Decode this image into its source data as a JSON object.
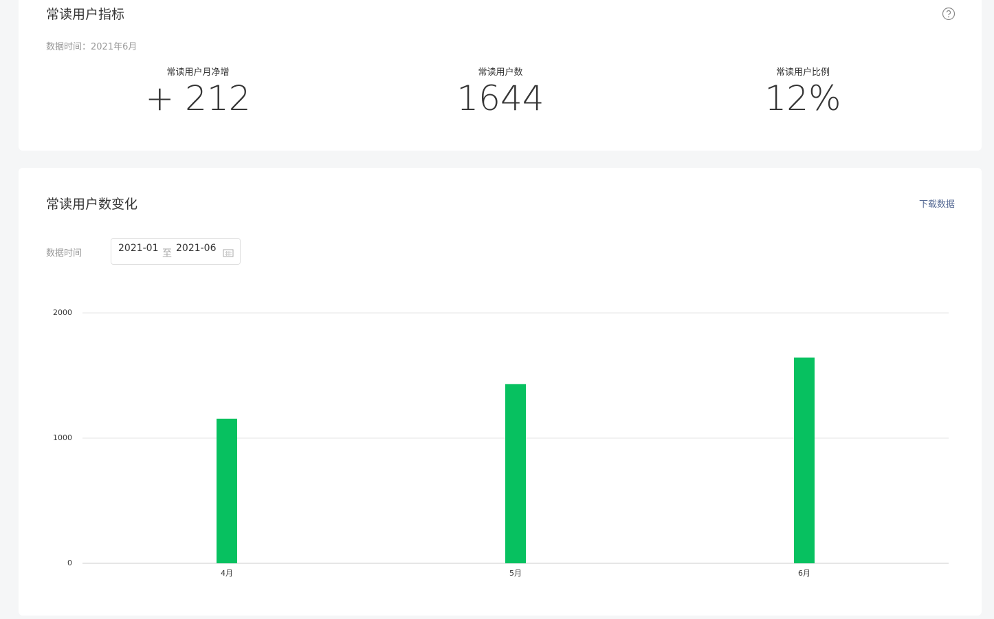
{
  "metrics_card": {
    "title": "常读用户指标",
    "data_time": "数据时间：2021年6月",
    "metrics": [
      {
        "label": "常读用户月净增",
        "value": "+ 212"
      },
      {
        "label": "常读用户数",
        "value": "1644"
      },
      {
        "label": "常读用户比例",
        "value": "12%"
      }
    ]
  },
  "trend_card": {
    "title": "常读用户数变化",
    "download": "下载数据",
    "filter_label": "数据时间",
    "date_start": "2021-01",
    "date_separator": "至",
    "date_end": "2021-06"
  },
  "chart_data": {
    "type": "bar",
    "categories": [
      "4月",
      "5月",
      "6月"
    ],
    "values": [
      1155,
      1432,
      1644
    ],
    "color": "#07c160",
    "ylim": [
      0,
      2000
    ],
    "yticks": [
      0,
      1000,
      2000
    ],
    "grid": true
  }
}
